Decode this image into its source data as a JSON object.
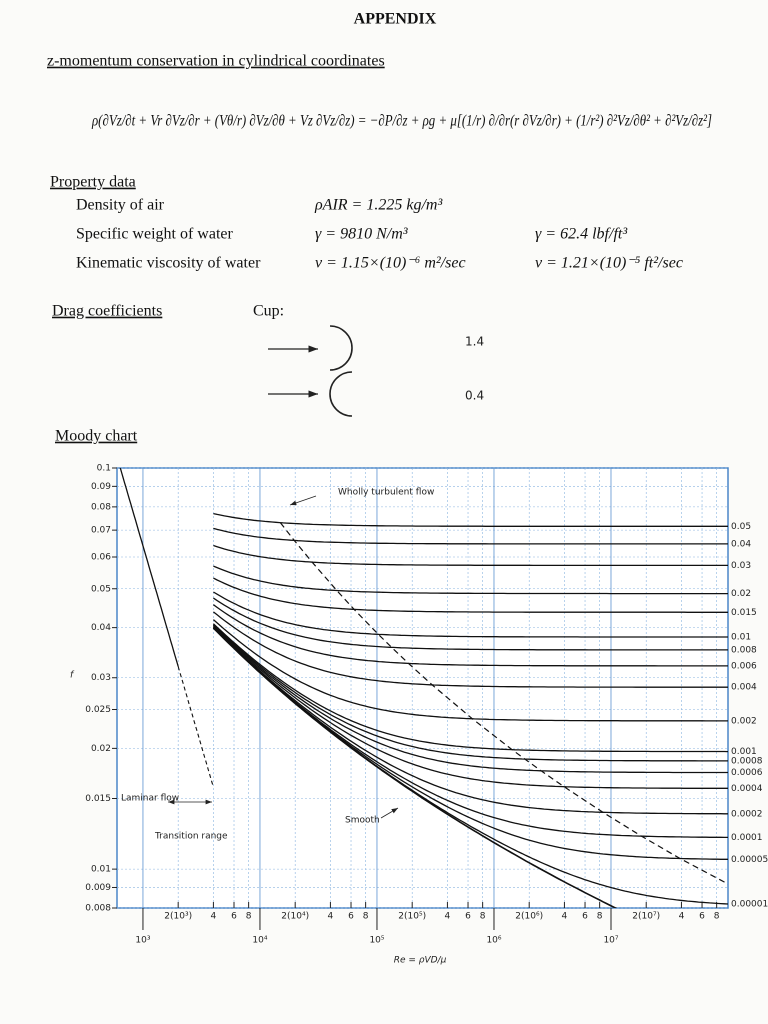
{
  "header": {
    "title": "APPENDIX"
  },
  "section": {
    "title": "z-momentum conservation in cylindrical coordinates",
    "equation": "ρ(∂Vz/∂t + Vr ∂Vz/∂r + (Vθ/r) ∂Vz/∂θ + Vz ∂Vz/∂z) = −∂P/∂z + ρg + μ[(1/r) ∂/∂r(r ∂Vz/∂r) + (1/r²) ∂²Vz/∂θ² + ∂²Vz/∂z²]"
  },
  "property_data": {
    "title": "Property data",
    "rows": [
      {
        "label": "Density of air",
        "si": "ρAIR = 1.225 kg/m³"
      },
      {
        "label": "Specific weight of water",
        "si": "γ = 9810 N/m³",
        "english": "γ = 62.4 lbf/ft³"
      },
      {
        "label": "Kinematic viscosity of water",
        "si": "ν = 1.15×(10)⁻⁶ m²/sec",
        "english": "ν = 1.21×(10)⁻⁵ ft²/sec"
      }
    ]
  },
  "drag_coefficients": {
    "title": "Drag coefficients",
    "object": "Cup:",
    "values": [
      1.4,
      0.4
    ]
  },
  "moody_chart": {
    "type": "line",
    "title": "Moody chart",
    "y_label": "f",
    "x_label": "Re = ρVD/μ",
    "log_x": true,
    "log_y": true,
    "grid": true,
    "color": "#111",
    "xlim": [
      600,
      100000000
    ],
    "ylim": [
      0.008,
      0.1
    ],
    "xticks": [
      {
        "value": 1000,
        "label": "10³"
      },
      {
        "value": 10000,
        "label": "10⁴"
      },
      {
        "value": 100000,
        "label": "10⁵"
      },
      {
        "value": 1000000,
        "label": "10⁶"
      },
      {
        "value": 10000000,
        "label": "10⁷"
      }
    ],
    "xticks_minor": [
      {
        "value": 2000,
        "label": "2(10³)"
      },
      {
        "value": 4000,
        "label": "4"
      },
      {
        "value": 6000,
        "label": "6"
      },
      {
        "value": 8000,
        "label": "8"
      },
      {
        "value": 20000,
        "label": "2(10⁴)"
      },
      {
        "value": 40000,
        "label": "4"
      },
      {
        "value": 60000,
        "label": "6"
      },
      {
        "value": 80000,
        "label": "8"
      },
      {
        "value": 200000,
        "label": "2(10⁵)"
      },
      {
        "value": 400000,
        "label": "4"
      },
      {
        "value": 600000,
        "label": "6"
      },
      {
        "value": 800000,
        "label": "8"
      },
      {
        "value": 2000000,
        "label": "2(10⁶)"
      },
      {
        "value": 4000000,
        "label": "4"
      },
      {
        "value": 6000000,
        "label": "6"
      },
      {
        "value": 8000000,
        "label": "8"
      },
      {
        "value": 20000000,
        "label": "2(10⁷)"
      },
      {
        "value": 40000000,
        "label": "4"
      },
      {
        "value": 60000000,
        "label": "6"
      },
      {
        "value": 80000000,
        "label": "8"
      }
    ],
    "yticks": [
      0.1,
      0.09,
      0.08,
      0.07,
      0.06,
      0.05,
      0.04,
      0.03,
      0.025,
      0.02,
      0.015,
      0.01,
      0.009,
      0.008
    ],
    "roughness": [
      0.05,
      0.04,
      0.03,
      0.02,
      0.015,
      0.01,
      0.008,
      0.006,
      0.004,
      0.002,
      0.001,
      0.0008,
      0.0006,
      0.0004,
      0.0002,
      0.0001,
      5e-05,
      1e-05
    ],
    "annotations": [
      "Wholly turbulent flow",
      "Laminar flow",
      "Transition range",
      "Smooth"
    ]
  }
}
